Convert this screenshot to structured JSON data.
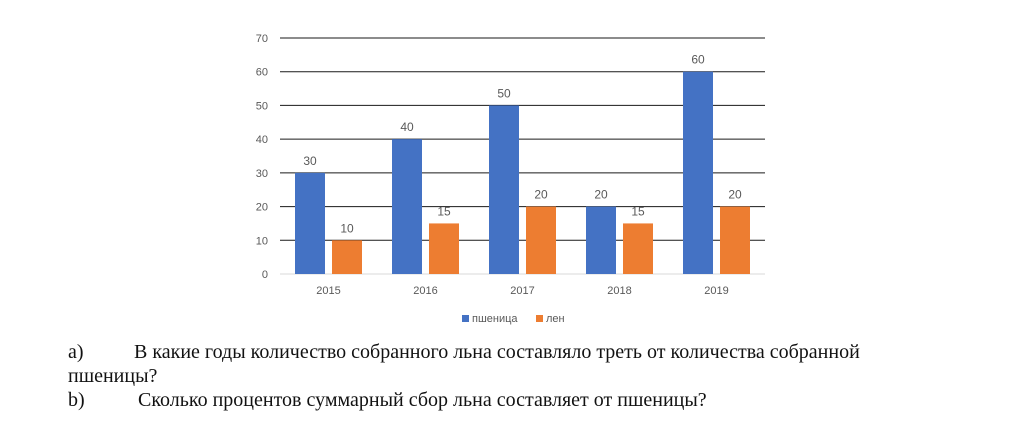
{
  "chart_data": {
    "type": "bar",
    "categories": [
      "2015",
      "2016",
      "2017",
      "2018",
      "2019"
    ],
    "series": [
      {
        "name": "пшеница",
        "values": [
          30,
          40,
          50,
          20,
          60
        ],
        "color": "#4472C4"
      },
      {
        "name": "лен",
        "values": [
          10,
          15,
          20,
          15,
          20
        ],
        "color": "#ED7D31"
      }
    ],
    "ylim": [
      0,
      70
    ],
    "yticks": [
      0,
      10,
      20,
      30,
      40,
      50,
      60,
      70
    ],
    "grid": true,
    "legend": "bottom",
    "title": "",
    "xlabel": "",
    "ylabel": ""
  },
  "questions": {
    "a_letter": "a)",
    "a_text_line1": "В какие годы количество собранного льна составляло треть от количества собранной",
    "a_text_line2": "пшеницы?",
    "b_letter": "b)",
    "b_text": "Сколько процентов суммарный сбор льна составляет от пшеницы?"
  }
}
